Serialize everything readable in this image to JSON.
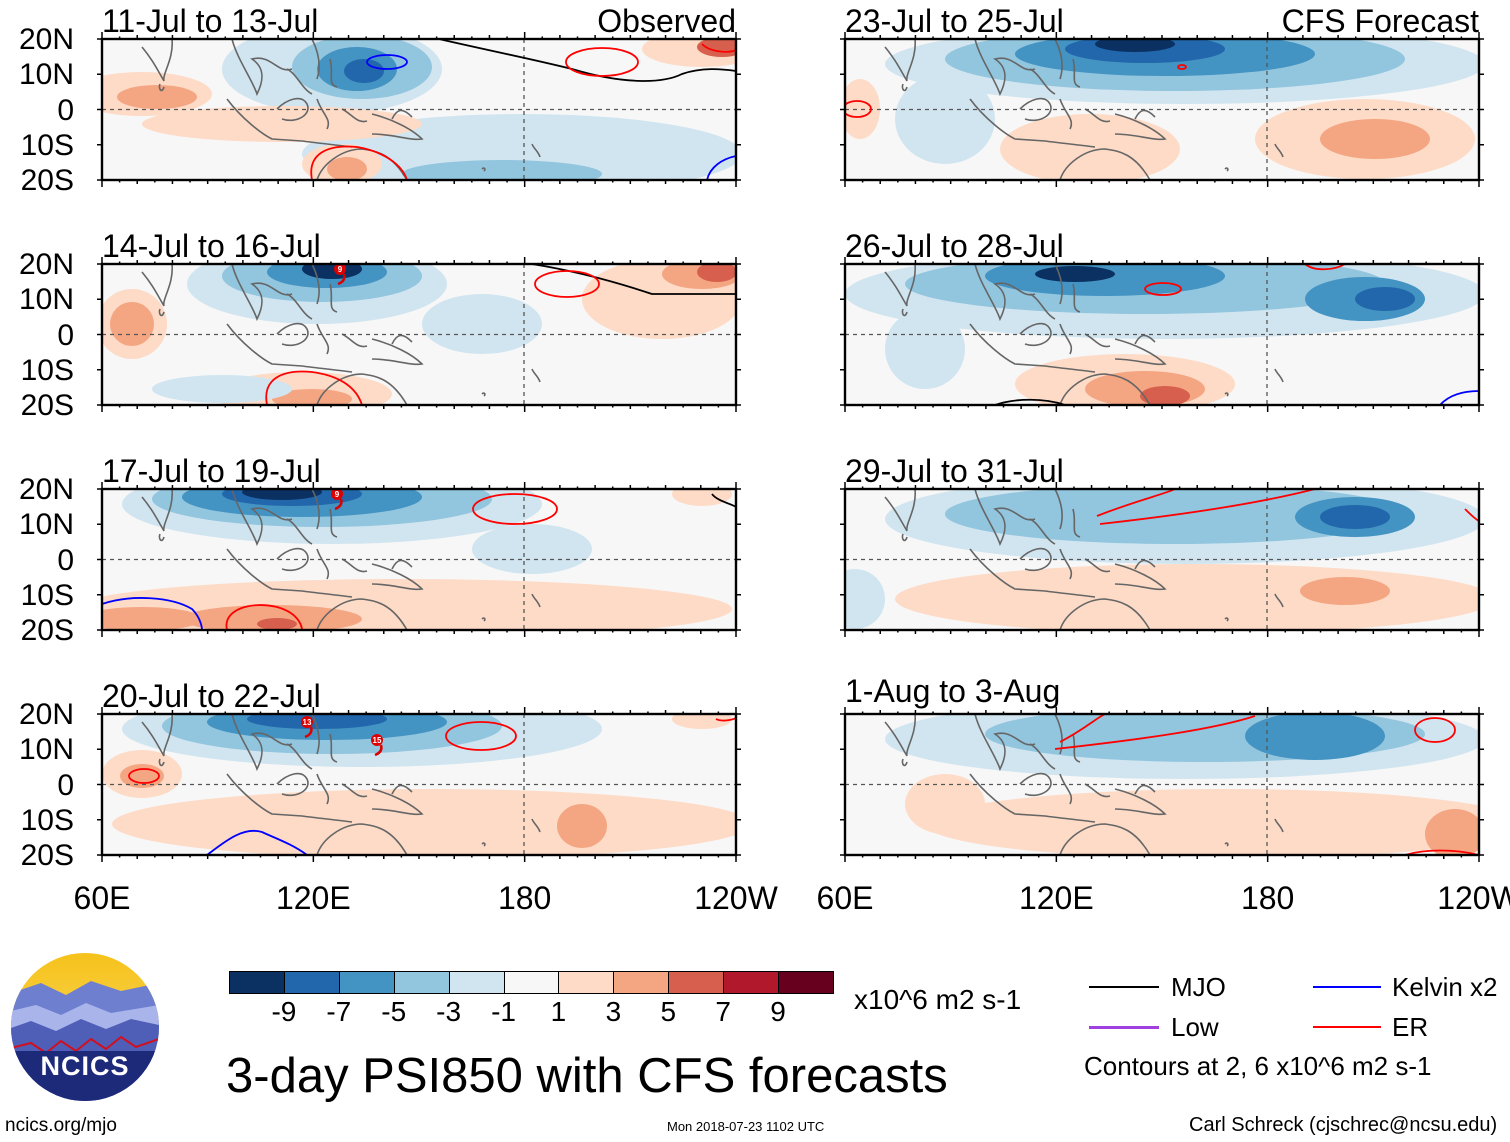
{
  "figure": {
    "title": "3-day PSI850 with CFS forecasts",
    "timestamp": "Mon 2018-07-23 1102 UTC",
    "credit": "Carl Schreck (cjschrec@ncsu.edu)",
    "url": "ncics.org/mjo",
    "logo_text": "NCICS"
  },
  "columns": {
    "observed_label": "Observed",
    "forecast_label": "CFS Forecast"
  },
  "lat_labels": [
    "20N",
    "10N",
    "0",
    "10S",
    "20S"
  ],
  "lon_labels": [
    "60E",
    "120E",
    "180",
    "120W"
  ],
  "panels": [
    {
      "title": "11-Jul to 13-Jul",
      "kind": "observed",
      "storms": []
    },
    {
      "title": "14-Jul to 16-Jul",
      "kind": "observed",
      "storms": [
        "9"
      ]
    },
    {
      "title": "17-Jul to 19-Jul",
      "kind": "observed",
      "storms": [
        "9"
      ]
    },
    {
      "title": "20-Jul to 22-Jul",
      "kind": "observed",
      "storms": [
        "13",
        "15"
      ]
    },
    {
      "title": "23-Jul to 25-Jul",
      "kind": "forecast",
      "storms": []
    },
    {
      "title": "26-Jul to 28-Jul",
      "kind": "forecast",
      "storms": []
    },
    {
      "title": "29-Jul to 31-Jul",
      "kind": "forecast",
      "storms": []
    },
    {
      "title": "1-Aug to 3-Aug",
      "kind": "forecast",
      "storms": []
    }
  ],
  "colorbar": {
    "colors": [
      "#0b3162",
      "#2266ab",
      "#4393c3",
      "#92c5de",
      "#d1e5f0",
      "#f7f7f7",
      "#fddbc7",
      "#f4a582",
      "#d6604d",
      "#b2182b",
      "#67001f"
    ],
    "ticks": [
      "-9",
      "-7",
      "-5",
      "-3",
      "-1",
      "1",
      "3",
      "5",
      "7",
      "9"
    ],
    "units": "x10^6 m2 s-1"
  },
  "legend": {
    "items": [
      {
        "label": "MJO",
        "color": "#000000"
      },
      {
        "label": "Kelvin x2",
        "color": "#0000ff"
      },
      {
        "label": "Low",
        "color": "#a040e0"
      },
      {
        "label": "ER",
        "color": "#ff0000"
      }
    ],
    "contour_note": "Contours at 2, 6 x10^6 m2 s-1"
  }
}
